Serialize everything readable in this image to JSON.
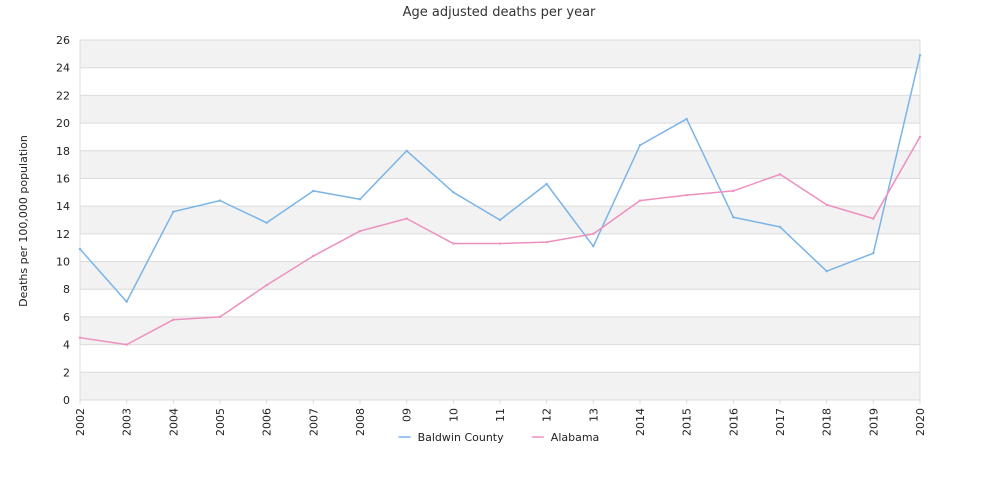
{
  "chart_data": {
    "type": "line",
    "title": "Age adjusted deaths per year",
    "xlabel": "",
    "ylabel": "Deaths per 100,000 population",
    "x": [
      "2002",
      "2003",
      "2004",
      "2005",
      "2006",
      "2007",
      "2008",
      "09",
      "10",
      "11",
      "12",
      "13",
      "2014",
      "2015",
      "2016",
      "2017",
      "2018",
      "2019",
      "2020"
    ],
    "ylim": [
      0,
      26
    ],
    "yticks": [
      0,
      2,
      4,
      6,
      8,
      10,
      12,
      14,
      16,
      18,
      20,
      22,
      24,
      26
    ],
    "grid": "horizontal alternating bands",
    "legend": "bottom-center",
    "series": [
      {
        "name": "Baldwin County",
        "color": "#7ab4e8",
        "values": [
          10.9,
          7.1,
          13.6,
          14.4,
          12.8,
          15.1,
          14.5,
          18.0,
          15.0,
          13.0,
          15.6,
          11.1,
          18.4,
          20.3,
          13.2,
          12.5,
          9.3,
          10.6,
          24.9
        ]
      },
      {
        "name": "Alabama",
        "color": "#ee90bf",
        "values": [
          4.5,
          4.0,
          5.8,
          6.0,
          8.3,
          10.4,
          12.2,
          13.1,
          11.3,
          11.3,
          11.4,
          12.0,
          14.4,
          14.8,
          15.1,
          16.3,
          14.1,
          13.1,
          19.0
        ]
      }
    ]
  }
}
